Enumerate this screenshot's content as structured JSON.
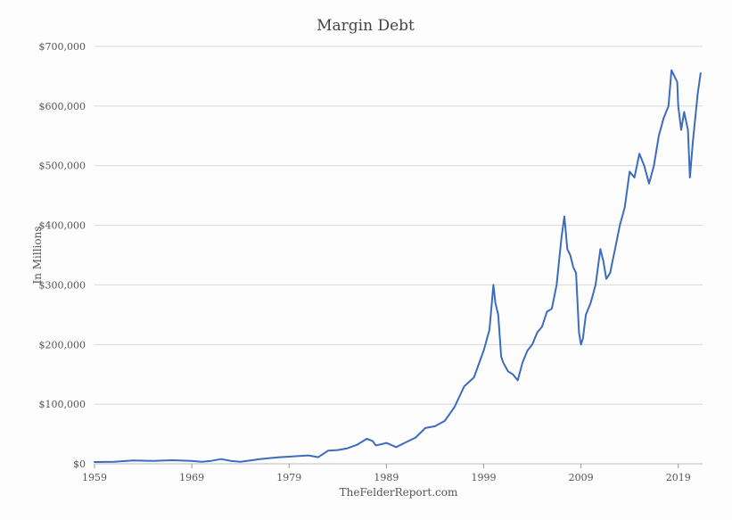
{
  "chart_data": {
    "type": "line",
    "title": "Margin Debt",
    "xlabel": "TheFelderReport.com",
    "ylabel": "In Millions",
    "xlim": [
      1959,
      2021.5
    ],
    "ylim": [
      0,
      700000
    ],
    "grid": true,
    "legend": "none",
    "colors": {
      "line": "#3d6cbf",
      "grid": "#d9d9d9"
    },
    "y_ticks": [
      0,
      100000,
      200000,
      300000,
      400000,
      500000,
      600000,
      700000
    ],
    "y_tick_labels": [
      "$0",
      "$100,000",
      "$200,000",
      "$300,000",
      "$400,000",
      "$500,000",
      "$600,000",
      "$700,000"
    ],
    "x_ticks": [
      1959,
      1969,
      1979,
      1989,
      1999,
      2009,
      2019
    ],
    "x_tick_labels": [
      "1959",
      "1969",
      "1979",
      "1989",
      "1999",
      "2009",
      "2019"
    ],
    "series": [
      {
        "name": "Margin Debt",
        "x": [
          1959,
          1961,
          1963,
          1965,
          1967,
          1969,
          1970,
          1971,
          1972,
          1973,
          1974,
          1975,
          1976,
          1977,
          1978,
          1979,
          1980,
          1981,
          1982,
          1983,
          1984,
          1985,
          1986,
          1987,
          1987.6,
          1987.9,
          1988,
          1989,
          1990,
          1991,
          1992,
          1993,
          1994,
          1995,
          1996,
          1997,
          1998,
          1999,
          1999.6,
          2000,
          2000.2,
          2000.5,
          2000.8,
          2001,
          2001.5,
          2002,
          2002.5,
          2003,
          2003.5,
          2004,
          2004.5,
          2005,
          2005.5,
          2006,
          2006.5,
          2007,
          2007.3,
          2007.6,
          2007.9,
          2008.2,
          2008.5,
          2008.8,
          2009,
          2009.2,
          2009.5,
          2010,
          2010.5,
          2011,
          2011.3,
          2011.6,
          2012,
          2012.5,
          2013,
          2013.5,
          2014,
          2014.5,
          2015,
          2015.5,
          2016,
          2016.5,
          2017,
          2017.5,
          2018,
          2018.3,
          2018.6,
          2018.9,
          2019,
          2019.3,
          2019.6,
          2020,
          2020.2,
          2020.5,
          2021,
          2021.3
        ],
        "values": [
          3000,
          3500,
          5500,
          5000,
          6000,
          5000,
          3500,
          5000,
          8000,
          5000,
          3500,
          5500,
          8000,
          9500,
          11000,
          12000,
          13000,
          14000,
          11000,
          22000,
          23000,
          26000,
          32000,
          42000,
          38000,
          31000,
          31000,
          35000,
          28000,
          36000,
          44000,
          60000,
          63000,
          72000,
          95000,
          130000,
          145000,
          190000,
          225000,
          300000,
          270000,
          250000,
          180000,
          170000,
          155000,
          150000,
          140000,
          170000,
          190000,
          200000,
          220000,
          230000,
          255000,
          260000,
          300000,
          380000,
          415000,
          360000,
          350000,
          330000,
          320000,
          220000,
          200000,
          210000,
          250000,
          270000,
          300000,
          360000,
          340000,
          310000,
          320000,
          360000,
          400000,
          430000,
          490000,
          480000,
          520000,
          500000,
          470000,
          500000,
          550000,
          580000,
          600000,
          660000,
          650000,
          640000,
          600000,
          560000,
          590000,
          560000,
          480000,
          540000,
          620000,
          655000
        ]
      }
    ]
  }
}
